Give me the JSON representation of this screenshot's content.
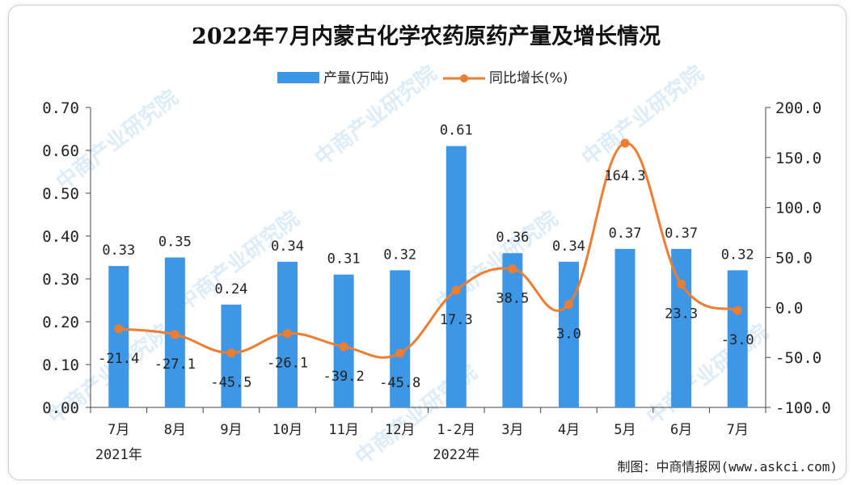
{
  "chart_data": {
    "type": "bar+line",
    "title": "2022年7月内蒙古化学农药原药产量及增长情况",
    "categories": [
      "7月",
      "8月",
      "9月",
      "10月",
      "11月",
      "12月",
      "1-2月",
      "3月",
      "4月",
      "5月",
      "6月",
      "7月"
    ],
    "year_labels": [
      {
        "label": "2021年",
        "category_index": 0
      },
      {
        "label": "2022年",
        "category_index": 6
      }
    ],
    "series": [
      {
        "name": "产量(万吨)",
        "type": "bar",
        "axis": "left",
        "values": [
          0.33,
          0.35,
          0.24,
          0.34,
          0.31,
          0.32,
          0.61,
          0.36,
          0.34,
          0.37,
          0.37,
          0.32
        ],
        "labels": [
          "0.33",
          "0.35",
          "0.24",
          "0.34",
          "0.31",
          "0.32",
          "0.61",
          "0.36",
          "0.34",
          "0.37",
          "0.37",
          "0.32"
        ]
      },
      {
        "name": "同比增长(%)",
        "type": "line",
        "axis": "right",
        "smooth": true,
        "values": [
          -21.4,
          -27.1,
          -45.5,
          -26.1,
          -39.2,
          -45.8,
          17.3,
          38.5,
          3.0,
          164.3,
          23.3,
          -3.0
        ],
        "labels": [
          "-21.4",
          "-27.1",
          "-45.5",
          "-26.1",
          "-39.2",
          "-45.8",
          "17.3",
          "38.5",
          "3.0",
          "164.3",
          "23.3",
          "-3.0"
        ]
      }
    ],
    "left_axis": {
      "ylim": [
        0,
        0.7
      ],
      "ticks": [
        "0.00",
        "0.10",
        "0.20",
        "0.30",
        "0.40",
        "0.50",
        "0.60",
        "0.70"
      ]
    },
    "right_axis": {
      "ylim": [
        -100,
        200
      ],
      "ticks": [
        "-100.0",
        "-50.0",
        "0.0",
        "50.0",
        "100.0",
        "150.0",
        "200.0"
      ]
    },
    "legend_position": "top-center",
    "grid": false,
    "colors": {
      "bar": "#3d97e6",
      "line": "#ed7d31"
    },
    "source": "制图：中商情报网(www.askci.com)",
    "watermark": "中商产业研究院"
  }
}
